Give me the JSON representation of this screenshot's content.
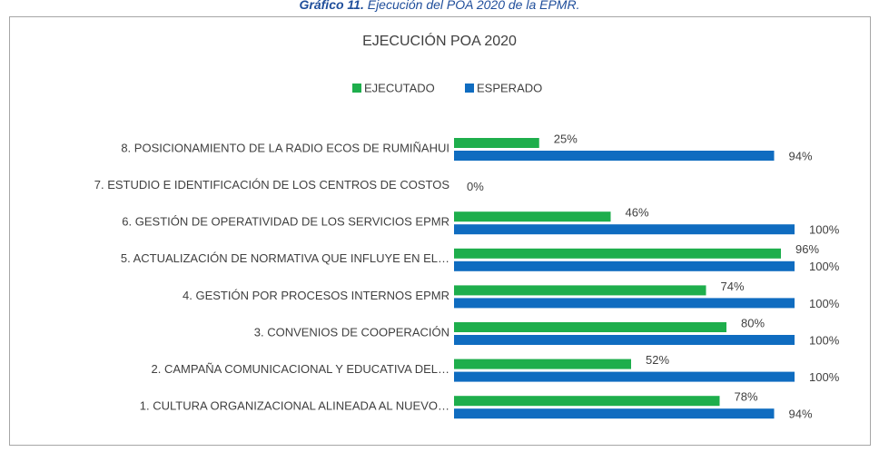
{
  "caption": {
    "label": "Gráfico 11.",
    "text": "Ejecución del POA 2020 de la EPMR."
  },
  "chart_data": {
    "type": "bar",
    "orientation": "horizontal",
    "title": "EJECUCIÓN POA 2020",
    "categories": [
      "8. POSICIONAMIENTO DE LA RADIO ECOS DE RUMIÑAHUI",
      "7. ESTUDIO E IDENTIFICACIÓN DE LOS CENTROS DE COSTOS",
      "6. GESTIÓN DE OPERATIVIDAD DE LOS SERVICIOS EPMR",
      "5. ACTUALIZACIÓN DE NORMATIVA QUE INFLUYE EN EL…",
      "4. GESTIÓN POR PROCESOS INTERNOS EPMR",
      "3. CONVENIOS DE COOPERACIÓN",
      "2. CAMPAÑA COMUNICACIONAL Y EDUCATIVA DEL…",
      "1. CULTURA ORGANIZACIONAL ALINEADA AL NUEVO…"
    ],
    "series": [
      {
        "name": "EJECUTADO",
        "color": "#1eae4c",
        "values": [
          25,
          0,
          46,
          96,
          74,
          80,
          52,
          78
        ],
        "value_labels": [
          "25%",
          "0%",
          "46%",
          "96%",
          "74%",
          "80%",
          "52%",
          "78%"
        ]
      },
      {
        "name": "ESPERADO",
        "color": "#0f6cc0",
        "values": [
          94,
          null,
          100,
          100,
          100,
          100,
          100,
          94
        ],
        "value_labels": [
          "94%",
          null,
          "100%",
          "100%",
          "100%",
          "100%",
          "100%",
          "94%"
        ]
      }
    ],
    "xlim": [
      0,
      100
    ],
    "legend": "top"
  }
}
